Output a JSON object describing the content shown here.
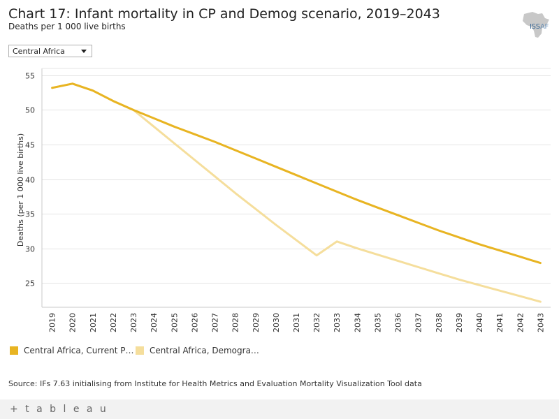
{
  "header": {
    "title": "Chart 17: Infant mortality in CP and Demog scenario, 2019–2043",
    "subtitle": "Deaths per 1 000 live births"
  },
  "logo": {
    "text_left": "ISS",
    "text_right": "AF"
  },
  "filter": {
    "selected": "Central Africa"
  },
  "chart_data": {
    "type": "line",
    "title": "Chart 17: Infant mortality in CP and Demog scenario, 2019–2043",
    "ylabel": "Deaths (per 1 000 live births)",
    "xlabel": "",
    "ylim": [
      21.5,
      56
    ],
    "yticks": [
      25,
      30,
      35,
      40,
      45,
      50,
      55
    ],
    "grid": true,
    "x": [
      "2019",
      "2020",
      "2021",
      "2022",
      "2023",
      "2024",
      "2025",
      "2026",
      "2027",
      "2028",
      "2029",
      "2030",
      "2031",
      "2032",
      "2033",
      "2034",
      "2035",
      "2036",
      "2037",
      "2038",
      "2039",
      "2040",
      "2041",
      "2042",
      "2043"
    ],
    "series": [
      {
        "name": "Central Africa, Current P…",
        "color": "#e8b422",
        "values": [
          53.2,
          53.8,
          52.8,
          51.3,
          50.0,
          48.8,
          47.6,
          46.5,
          45.4,
          44.2,
          43.0,
          41.8,
          40.6,
          39.4,
          38.2,
          37.0,
          35.9,
          34.8,
          33.7,
          32.6,
          31.6,
          30.6,
          29.7,
          28.8,
          27.9
        ]
      },
      {
        "name": "Central Africa, Demogra…",
        "color": "#f5de9c",
        "values": [
          53.2,
          53.8,
          52.8,
          51.3,
          50.0,
          47.6,
          45.2,
          42.8,
          40.4,
          38.0,
          35.7,
          33.4,
          31.2,
          29.0,
          31.0,
          30.0,
          29.1,
          28.2,
          27.3,
          26.4,
          25.5,
          24.7,
          23.9,
          23.1,
          22.3
        ]
      }
    ]
  },
  "source": "Source: IFs 7.63 initialising from Institute for Health Metrics and Evaluation Mortality Visualization Tool data",
  "footer": {
    "brand": "+ t a b l e a u"
  }
}
